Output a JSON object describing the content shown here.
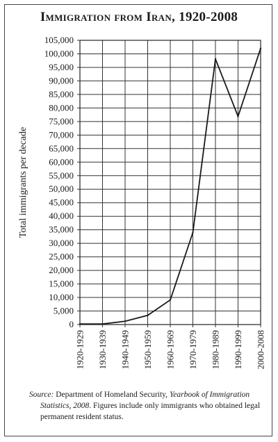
{
  "chart_data": {
    "type": "line",
    "title": "Immigration from Iran, 1920-2008",
    "xlabel": "",
    "ylabel": "Total immigrants per decade",
    "categories": [
      "1920-1929",
      "1930-1939",
      "1940-1949",
      "1950-1959",
      "1960-1969",
      "1970-1979",
      "1980-1989",
      "1990-1999",
      "2000-2008"
    ],
    "series": [
      {
        "values": [
          200,
          200,
          1200,
          3400,
          9100,
          34000,
          98100,
          76900,
          102000
        ]
      }
    ],
    "ylim": [
      0,
      105000
    ],
    "yticks": [
      0,
      5000,
      10000,
      15000,
      20000,
      25000,
      30000,
      35000,
      40000,
      45000,
      50000,
      55000,
      60000,
      65000,
      70000,
      75000,
      80000,
      85000,
      90000,
      95000,
      100000,
      105000
    ],
    "ytick_labels": [
      "0",
      "5,000",
      "10,000",
      "15,000",
      "20,000",
      "25,000",
      "30,000",
      "35,000",
      "40,000",
      "45,000",
      "50,000",
      "55,000",
      "60,000",
      "65,000",
      "70,000",
      "75,000",
      "80,000",
      "85,000",
      "90,000",
      "95,000",
      "100,000",
      "105,000"
    ],
    "grid": true,
    "line_color": "#1a1a1a",
    "grid_color": "#333333"
  },
  "source": {
    "label": "Source:",
    "text1": " Department of Homeland Security, ",
    "publication": "Yearbook of Immigration Statistics, 2008",
    "text2": ". Figures include only immigrants who obtained legal permanent resident status."
  }
}
